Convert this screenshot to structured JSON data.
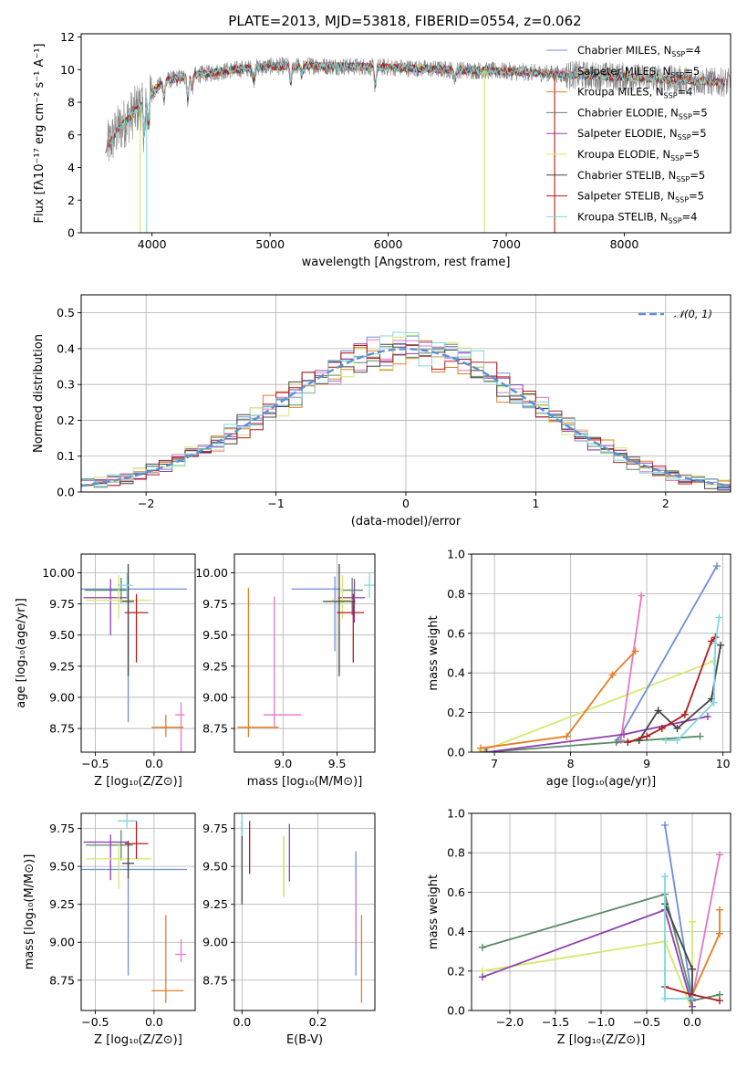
{
  "figure_title": "PLATE=2013, MJD=53818, FIBERID=0554, z=0.062",
  "colors": {
    "Chabrier MILES": "#6b8fd6",
    "Salpeter MILES": "#e377c2",
    "Kroupa MILES": "#e67e22",
    "Chabrier ELODIE": "#5a8a66",
    "Salpeter ELODIE": "#8e3fb0",
    "Kroupa ELODIE": "#d4e86b",
    "Chabrier STELIB": "#444444",
    "Salpeter STELIB": "#b31b1b",
    "Kroupa STELIB": "#7fd8dd",
    "data": "#808080",
    "normal": "#5b8fd6",
    "grid": "#b0b0b0"
  },
  "chart_data": [
    {
      "id": "spectrum",
      "type": "line",
      "title": "PLATE=2013, MJD=53818, FIBERID=0554, z=0.062",
      "xlabel": "wavelength [Angstrom, rest frame]",
      "ylabel": "Flux [fλ10⁻¹⁷ erg cm⁻² s⁻¹ A⁻¹]",
      "xlim": [
        3400,
        8900
      ],
      "ylim": [
        0,
        12.2
      ],
      "xticks": [
        4000,
        5000,
        6000,
        7000,
        8000
      ],
      "yticks": [
        0,
        2,
        4,
        6,
        8,
        10,
        12
      ],
      "grid": false,
      "legend_position": "upper right",
      "legend": [
        {
          "name": "Chabrier MILES",
          "label_main": "Chabrier MILES, N",
          "sub": "SSP",
          "label_tail": "=4"
        },
        {
          "name": "Salpeter MILES",
          "label_main": "Salpeter MILES, N",
          "sub": "SSP",
          "label_tail": "=5"
        },
        {
          "name": "Kroupa MILES",
          "label_main": "Kroupa MILES, N",
          "sub": "SSP",
          "label_tail": "=4"
        },
        {
          "name": "Chabrier ELODIE",
          "label_main": "Chabrier ELODIE, N",
          "sub": "SSP",
          "label_tail": "=5"
        },
        {
          "name": "Salpeter ELODIE",
          "label_main": "Salpeter ELODIE, N",
          "sub": "SSP",
          "label_tail": "=5"
        },
        {
          "name": "Kroupa ELODIE",
          "label_main": "Kroupa ELODIE, N",
          "sub": "SSP",
          "label_tail": "=5"
        },
        {
          "name": "Chabrier STELIB",
          "label_main": "Chabrier STELIB, N",
          "sub": "SSP",
          "label_tail": "=5"
        },
        {
          "name": "Salpeter STELIB",
          "label_main": "Salpeter STELIB, N",
          "sub": "SSP",
          "label_tail": "=5"
        },
        {
          "name": "Kroupa STELIB",
          "label_main": "Kroupa STELIB, N",
          "sub": "SSP",
          "label_tail": "=4"
        }
      ],
      "continuum_x": [
        3600,
        3700,
        3800,
        3900,
        4000,
        4100,
        4300,
        4500,
        4700,
        5000,
        5300,
        5600,
        6000,
        6500,
        7000,
        7500,
        8000,
        8500,
        8900
      ],
      "continuum_y": [
        5.0,
        6.2,
        7.0,
        7.8,
        8.6,
        9.3,
        9.6,
        9.8,
        10.0,
        10.2,
        10.25,
        10.2,
        10.15,
        10.0,
        9.9,
        9.7,
        9.55,
        9.35,
        9.2
      ],
      "absorption_features": [
        {
          "x": 3934,
          "depth": 2.0
        },
        {
          "x": 3969,
          "depth": 1.6
        },
        {
          "x": 4102,
          "depth": 1.0
        },
        {
          "x": 4304,
          "depth": 1.4
        },
        {
          "x": 4340,
          "depth": 0.8
        },
        {
          "x": 4861,
          "depth": 0.7
        },
        {
          "x": 5175,
          "depth": 1.0
        },
        {
          "x": 5270,
          "depth": 0.6
        },
        {
          "x": 5890,
          "depth": 1.1
        },
        {
          "x": 6563,
          "depth": 0.6
        }
      ],
      "spikes": [
        {
          "x": 3900,
          "y": 0.0,
          "series": "Kroupa ELODIE"
        },
        {
          "x": 3955,
          "y": 0.0,
          "series": "Kroupa STELIB"
        },
        {
          "x": 6815,
          "y": 0.0,
          "series": "Kroupa ELODIE"
        },
        {
          "x": 7410,
          "y": 0.0,
          "series": "Salpeter STELIB"
        }
      ]
    },
    {
      "id": "residuals",
      "type": "step",
      "xlabel": "(data-model)/error",
      "ylabel": "Normed distribution",
      "xlim": [
        -2.5,
        2.5
      ],
      "ylim": [
        0,
        0.55
      ],
      "xticks": [
        -2,
        -1,
        0,
        1,
        2
      ],
      "yticks": [
        0.0,
        0.1,
        0.2,
        0.3,
        0.4,
        0.5
      ],
      "grid": true,
      "legend_position": "upper right",
      "legend_text": "𝒩(0, 1)",
      "bin_width": 0.1,
      "bin_start": -2.5,
      "sigma": 1.0
    },
    {
      "id": "age_vs_z",
      "type": "errorbar",
      "xlabel": "Z [log₁₀(Z/Z⊙)]",
      "ylabel": "age [log₁₀(age/yr)]",
      "xlim": [
        -0.62,
        0.35
      ],
      "ylim": [
        8.56,
        10.15
      ],
      "xticks": [
        -0.5,
        0.0
      ],
      "yticks": [
        8.75,
        9.0,
        9.25,
        9.5,
        9.75,
        10.0
      ],
      "grid": true,
      "points": [
        {
          "series": "Chabrier MILES",
          "x": -0.22,
          "y": 9.87,
          "xerr": [
            0.5,
            0.5
          ],
          "yerr": [
            1.07,
            0.1
          ]
        },
        {
          "series": "Salpeter MILES",
          "x": 0.23,
          "y": 8.86,
          "xerr": [
            0.05,
            0.03
          ],
          "yerr": [
            0.9,
            0.1
          ]
        },
        {
          "series": "Kroupa MILES",
          "x": 0.1,
          "y": 8.76,
          "xerr": [
            0.12,
            0.15
          ],
          "yerr": [
            0.08,
            0.1
          ]
        },
        {
          "series": "Chabrier ELODIE",
          "x": -0.28,
          "y": 9.86,
          "xerr": [
            0.31,
            0.05
          ],
          "yerr": [
            0.1,
            0.1
          ]
        },
        {
          "series": "Salpeter ELODIE",
          "x": -0.37,
          "y": 9.8,
          "xerr": [
            0.23,
            0.15
          ],
          "yerr": [
            0.3,
            0.15
          ]
        },
        {
          "series": "Kroupa ELODIE",
          "x": -0.3,
          "y": 9.78,
          "xerr": [
            0.28,
            0.28
          ],
          "yerr": [
            0.15,
            0.2
          ]
        },
        {
          "series": "Chabrier STELIB",
          "x": -0.22,
          "y": 9.77,
          "xerr": [
            0.05,
            0.05
          ],
          "yerr": [
            0.6,
            0.3
          ]
        },
        {
          "series": "Salpeter STELIB",
          "x": -0.15,
          "y": 9.68,
          "xerr": [
            0.1,
            0.1
          ],
          "yerr": [
            0.4,
            0.15
          ]
        },
        {
          "series": "Kroupa STELIB",
          "x": -0.23,
          "y": 9.9,
          "xerr": [
            0.08,
            0.05
          ],
          "yerr": [
            0.1,
            0.1
          ]
        }
      ]
    },
    {
      "id": "age_vs_mass",
      "type": "errorbar",
      "xlabel": "mass [log₁₀(M/M⊙)]",
      "ylabel": "",
      "xlim": [
        8.55,
        9.85
      ],
      "ylim": [
        8.56,
        10.15
      ],
      "xticks": [
        9.0,
        9.5
      ],
      "yticks": [
        8.75,
        9.0,
        9.25,
        9.5,
        9.75,
        10.0
      ],
      "grid": true,
      "points": [
        {
          "series": "Chabrier MILES",
          "x": 9.48,
          "y": 9.87,
          "xerr": [
            0.4,
            0.05
          ],
          "yerr": [
            0.5,
            0.1
          ]
        },
        {
          "series": "Salpeter MILES",
          "x": 8.92,
          "y": 8.86,
          "xerr": [
            0.1,
            0.25
          ],
          "yerr": [
            0.1,
            0.95
          ]
        },
        {
          "series": "Kroupa MILES",
          "x": 8.68,
          "y": 8.76,
          "xerr": [
            0.1,
            0.28
          ],
          "yerr": [
            0.08,
            1.12
          ]
        },
        {
          "series": "Chabrier ELODIE",
          "x": 9.64,
          "y": 9.86,
          "xerr": [
            0.1,
            0.1
          ],
          "yerr": [
            0.2,
            0.1
          ]
        },
        {
          "series": "Salpeter ELODIE",
          "x": 9.66,
          "y": 9.8,
          "xerr": [
            0.15,
            0.1
          ],
          "yerr": [
            0.2,
            0.15
          ]
        },
        {
          "series": "Kroupa ELODIE",
          "x": 9.55,
          "y": 9.78,
          "xerr": [
            0.1,
            0.1
          ],
          "yerr": [
            0.15,
            0.2
          ]
        },
        {
          "series": "Chabrier STELIB",
          "x": 9.52,
          "y": 9.77,
          "xerr": [
            0.15,
            0.15
          ],
          "yerr": [
            0.6,
            0.3
          ]
        },
        {
          "series": "Salpeter STELIB",
          "x": 9.65,
          "y": 9.68,
          "xerr": [
            0.15,
            0.1
          ],
          "yerr": [
            0.4,
            0.15
          ]
        },
        {
          "series": "Kroupa STELIB",
          "x": 9.8,
          "y": 9.9,
          "xerr": [
            0.05,
            0.05
          ],
          "yerr": [
            0.1,
            0.1
          ]
        }
      ]
    },
    {
      "id": "weight_vs_age",
      "type": "line",
      "xlabel": "age [log₁₀(age/yr)]",
      "ylabel": "mass weight",
      "xlim": [
        6.7,
        10.1
      ],
      "ylim": [
        0.0,
        1.0
      ],
      "xticks": [
        7,
        8,
        9,
        10
      ],
      "yticks": [
        0.0,
        0.2,
        0.4,
        0.6,
        0.8,
        1.0
      ],
      "grid": true,
      "series": [
        {
          "name": "Kroupa ELODIE",
          "x": [
            6.8,
            9.88
          ],
          "y": [
            0.0,
            0.46
          ]
        },
        {
          "name": "Chabrier MILES",
          "x": [
            8.62,
            9.92
          ],
          "y": [
            0.06,
            0.94
          ]
        },
        {
          "name": "Salpeter MILES",
          "x": [
            8.66,
            8.93
          ],
          "y": [
            0.06,
            0.79
          ]
        },
        {
          "name": "Kroupa MILES",
          "x": [
            6.82,
            7.95,
            8.55,
            8.85
          ],
          "y": [
            0.02,
            0.08,
            0.39,
            0.51
          ]
        },
        {
          "name": "Chabrier ELODIE",
          "x": [
            6.88,
            8.6,
            9.7
          ],
          "y": [
            0.0,
            0.05,
            0.08
          ]
        },
        {
          "name": "Salpeter ELODIE",
          "x": [
            6.9,
            8.7,
            9.8
          ],
          "y": [
            0.0,
            0.09,
            0.18
          ]
        },
        {
          "name": "Chabrier STELIB",
          "x": [
            8.9,
            9.15,
            9.4,
            9.85,
            9.97
          ],
          "y": [
            0.06,
            0.21,
            0.12,
            0.27,
            0.54
          ]
        },
        {
          "name": "Salpeter STELIB",
          "x": [
            8.75,
            9.0,
            9.2,
            9.5,
            9.85,
            9.9
          ],
          "y": [
            0.05,
            0.08,
            0.12,
            0.19,
            0.56,
            0.58
          ]
        },
        {
          "name": "Kroupa STELIB",
          "x": [
            9.25,
            9.4,
            9.88,
            9.9,
            9.95
          ],
          "y": [
            0.06,
            0.06,
            0.25,
            0.55,
            0.68
          ]
        }
      ]
    },
    {
      "id": "mass_vs_z",
      "type": "errorbar",
      "xlabel": "Z [log₁₀(Z/Z⊙)]",
      "ylabel": "mass [log₁₀(M/M⊙)]",
      "xlim": [
        -0.62,
        0.35
      ],
      "ylim": [
        8.55,
        9.85
      ],
      "xticks": [
        -0.5,
        0.0
      ],
      "yticks": [
        8.75,
        9.0,
        9.25,
        9.5,
        9.75
      ],
      "grid": true,
      "points": [
        {
          "series": "Chabrier MILES",
          "x": -0.22,
          "y": 9.48,
          "xerr": [
            0.48,
            0.5
          ],
          "yerr": [
            0.7,
            0.05
          ]
        },
        {
          "series": "Salpeter MILES",
          "x": 0.23,
          "y": 8.92,
          "xerr": [
            0.05,
            0.04
          ],
          "yerr": [
            0.05,
            0.1
          ]
        },
        {
          "series": "Kroupa MILES",
          "x": 0.1,
          "y": 8.68,
          "xerr": [
            0.12,
            0.15
          ],
          "yerr": [
            0.08,
            0.5
          ]
        },
        {
          "series": "Chabrier ELODIE",
          "x": -0.28,
          "y": 9.64,
          "xerr": [
            0.3,
            0.1
          ],
          "yerr": [
            0.1,
            0.1
          ]
        },
        {
          "series": "Salpeter ELODIE",
          "x": -0.37,
          "y": 9.66,
          "xerr": [
            0.23,
            0.15
          ],
          "yerr": [
            0.25,
            0.05
          ]
        },
        {
          "series": "Kroupa ELODIE",
          "x": -0.3,
          "y": 9.55,
          "xerr": [
            0.28,
            0.28
          ],
          "yerr": [
            0.2,
            0.1
          ]
        },
        {
          "series": "Chabrier STELIB",
          "x": -0.22,
          "y": 9.52,
          "xerr": [
            0.05,
            0.05
          ],
          "yerr": [
            0.1,
            0.15
          ]
        },
        {
          "series": "Salpeter STELIB",
          "x": -0.15,
          "y": 9.65,
          "xerr": [
            0.1,
            0.1
          ],
          "yerr": [
            0.1,
            0.15
          ]
        },
        {
          "series": "Kroupa STELIB",
          "x": -0.23,
          "y": 9.8,
          "xerr": [
            0.08,
            0.08
          ],
          "yerr": [
            0.05,
            0.05
          ]
        }
      ]
    },
    {
      "id": "mass_vs_ebv",
      "type": "errorbar",
      "xlabel": "E(B-V)",
      "ylabel": "",
      "xlim": [
        -0.02,
        0.35
      ],
      "ylim": [
        8.55,
        9.85
      ],
      "xticks": [
        0.0,
        0.2
      ],
      "yticks": [
        8.75,
        9.0,
        9.25,
        9.5,
        9.75
      ],
      "grid": true,
      "points": [
        {
          "series": "Chabrier MILES",
          "x": 0.3,
          "y": 9.48,
          "xerr": [
            0.0,
            0.0
          ],
          "yerr": [
            0.7,
            0.12
          ]
        },
        {
          "series": "Salpeter MILES",
          "x": 0.3,
          "y": 9.2,
          "xerr": [
            0.0,
            0.0
          ],
          "yerr": [
            0.25,
            0.22
          ]
        },
        {
          "series": "Kroupa MILES",
          "x": 0.315,
          "y": 8.9,
          "xerr": [
            0.0,
            0.0
          ],
          "yerr": [
            0.3,
            0.28
          ]
        },
        {
          "series": "Chabrier ELODIE",
          "x": 0.11,
          "y": 9.5,
          "xerr": [
            0.0,
            0.0
          ],
          "yerr": [
            0.2,
            0.2
          ]
        },
        {
          "series": "Salpeter ELODIE",
          "x": 0.125,
          "y": 9.6,
          "xerr": [
            0.0,
            0.0
          ],
          "yerr": [
            0.2,
            0.18
          ]
        },
        {
          "series": "Kroupa ELODIE",
          "x": 0.11,
          "y": 9.5,
          "xerr": [
            0.0,
            0.0
          ],
          "yerr": [
            0.2,
            0.2
          ]
        },
        {
          "series": "Chabrier STELIB",
          "x": 0.0,
          "y": 9.6,
          "xerr": [
            0.0,
            0.0
          ],
          "yerr": [
            0.35,
            0.2
          ]
        },
        {
          "series": "Salpeter STELIB",
          "x": 0.02,
          "y": 9.6,
          "xerr": [
            0.0,
            0.0
          ],
          "yerr": [
            0.15,
            0.2
          ]
        },
        {
          "series": "Kroupa STELIB",
          "x": 0.0,
          "y": 9.8,
          "xerr": [
            0.0,
            0.0
          ],
          "yerr": [
            0.1,
            0.1
          ]
        }
      ]
    },
    {
      "id": "weight_vs_z",
      "type": "line",
      "xlabel": "Z [log₁₀(Z/Z⊙)]",
      "ylabel": "mass weight",
      "xlim": [
        -2.42,
        0.42
      ],
      "ylim": [
        0.0,
        1.0
      ],
      "xticks": [
        -2.0,
        -1.5,
        -1.0,
        -0.5,
        0.0
      ],
      "yticks": [
        0.0,
        0.2,
        0.4,
        0.6,
        0.8,
        1.0
      ],
      "grid": true,
      "series": [
        {
          "name": "Kroupa ELODIE",
          "x": [
            -2.3,
            -0.3,
            0.0,
            0.0
          ],
          "y": [
            0.2,
            0.35,
            0.0,
            0.45
          ]
        },
        {
          "name": "Salpeter ELODIE",
          "x": [
            -2.3,
            -0.3,
            0.0
          ],
          "y": [
            0.17,
            0.51,
            0.02
          ]
        },
        {
          "name": "Chabrier ELODIE",
          "x": [
            -2.3,
            -0.3,
            0.0,
            0.3
          ],
          "y": [
            0.32,
            0.59,
            0.05,
            0.08
          ]
        },
        {
          "name": "Chabrier MILES",
          "x": [
            -0.3,
            0.0
          ],
          "y": [
            0.94,
            0.06
          ]
        },
        {
          "name": "Salpeter MILES",
          "x": [
            0.0,
            0.3
          ],
          "y": [
            0.06,
            0.79
          ]
        },
        {
          "name": "Kroupa MILES",
          "x": [
            0.0,
            0.3,
            0.3
          ],
          "y": [
            0.08,
            0.39,
            0.51
          ]
        },
        {
          "name": "Chabrier STELIB",
          "x": [
            -0.3,
            0.0,
            0.0
          ],
          "y": [
            0.54,
            0.21,
            0.06
          ]
        },
        {
          "name": "Salpeter STELIB",
          "x": [
            -0.3,
            0.0,
            0.3
          ],
          "y": [
            0.12,
            0.08,
            0.05
          ]
        },
        {
          "name": "Kroupa STELIB",
          "x": [
            -0.3,
            -0.3,
            0.0
          ],
          "y": [
            0.68,
            0.06,
            0.06
          ]
        }
      ]
    }
  ]
}
